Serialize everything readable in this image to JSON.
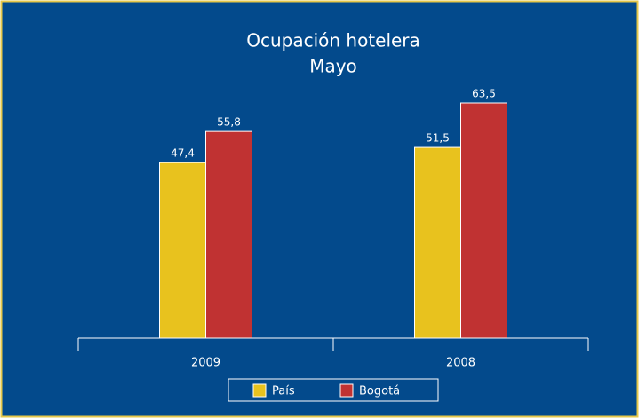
{
  "chart_data": {
    "type": "bar",
    "title": "Ocupación hotelera",
    "subtitle": "Mayo",
    "categories": [
      "2009",
      "2008"
    ],
    "series": [
      {
        "name": "País",
        "color": "#e8c21e",
        "values": [
          47.4,
          51.5
        ],
        "value_labels": [
          "47,4",
          "51,5"
        ]
      },
      {
        "name": "Bogotá",
        "color": "#c03232",
        "values": [
          55.8,
          63.5
        ],
        "value_labels": [
          "55,8",
          "63,5"
        ]
      }
    ],
    "legend": "bottom"
  }
}
